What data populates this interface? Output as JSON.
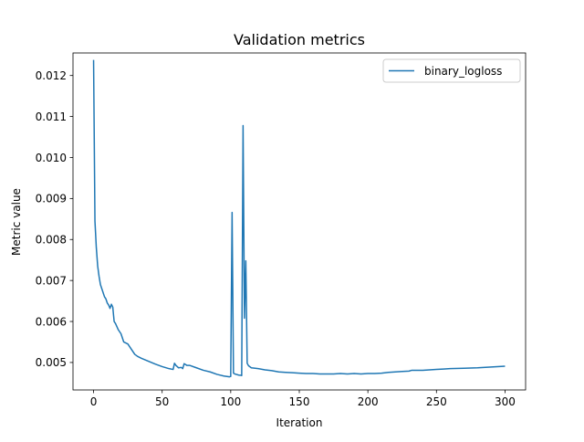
{
  "chart_data": {
    "type": "line",
    "title": "Validation metrics",
    "xlabel": "Iteration",
    "ylabel": "Metric value",
    "xlim": [
      -15,
      315
    ],
    "ylim": [
      0.00433,
      0.01255
    ],
    "xticks": [
      0,
      50,
      100,
      150,
      200,
      250,
      300
    ],
    "xtick_labels": [
      "0",
      "50",
      "100",
      "150",
      "200",
      "250",
      "300"
    ],
    "yticks": [
      0.005,
      0.006,
      0.007,
      0.008,
      0.009,
      0.01,
      0.011,
      0.012
    ],
    "ytick_labels": [
      "0.005",
      "0.006",
      "0.007",
      "0.008",
      "0.009",
      "0.010",
      "0.011",
      "0.012"
    ],
    "grid": false,
    "legend_position": "upper right",
    "series": [
      {
        "name": "binary_logloss",
        "color": "#1f77b4",
        "x": [
          0,
          1,
          2,
          3,
          4,
          5,
          6,
          7,
          8,
          9,
          10,
          11,
          12,
          13,
          14,
          15,
          16,
          18,
          20,
          22,
          25,
          28,
          30,
          32,
          35,
          40,
          45,
          50,
          55,
          58,
          59,
          60,
          62,
          64,
          65,
          66,
          68,
          70,
          75,
          80,
          85,
          90,
          95,
          99,
          100,
          101,
          102,
          103,
          104,
          105,
          106,
          107,
          108,
          109,
          110,
          111,
          112,
          113,
          115,
          120,
          125,
          130,
          135,
          140,
          145,
          150,
          155,
          160,
          165,
          170,
          175,
          180,
          185,
          190,
          195,
          200,
          205,
          210,
          215,
          220,
          225,
          230,
          232,
          240,
          250,
          255,
          260,
          270,
          280,
          290,
          300
        ],
        "y": [
          0.01238,
          0.00845,
          0.0078,
          0.00735,
          0.0071,
          0.0069,
          0.0068,
          0.0067,
          0.0066,
          0.00655,
          0.00645,
          0.0064,
          0.00632,
          0.00642,
          0.00635,
          0.006,
          0.00595,
          0.0058,
          0.0057,
          0.0055,
          0.00545,
          0.0053,
          0.0052,
          0.00515,
          0.0051,
          0.00503,
          0.00496,
          0.0049,
          0.00485,
          0.00483,
          0.00498,
          0.00493,
          0.00487,
          0.00488,
          0.00485,
          0.00497,
          0.00493,
          0.00493,
          0.00487,
          0.00481,
          0.00477,
          0.00471,
          0.00467,
          0.00465,
          0.00466,
          0.00866,
          0.00474,
          0.00472,
          0.00471,
          0.0047,
          0.00469,
          0.00469,
          0.00468,
          0.01078,
          0.00608,
          0.00748,
          0.00498,
          0.00492,
          0.00487,
          0.00485,
          0.00482,
          0.0048,
          0.00477,
          0.00476,
          0.00475,
          0.00474,
          0.00473,
          0.00473,
          0.00472,
          0.00472,
          0.00472,
          0.00473,
          0.00472,
          0.00473,
          0.00472,
          0.00473,
          0.00473,
          0.00474,
          0.00476,
          0.00477,
          0.00478,
          0.00479,
          0.00481,
          0.00481,
          0.00483,
          0.00484,
          0.00485,
          0.00486,
          0.00487,
          0.00489,
          0.00491
        ]
      }
    ]
  }
}
